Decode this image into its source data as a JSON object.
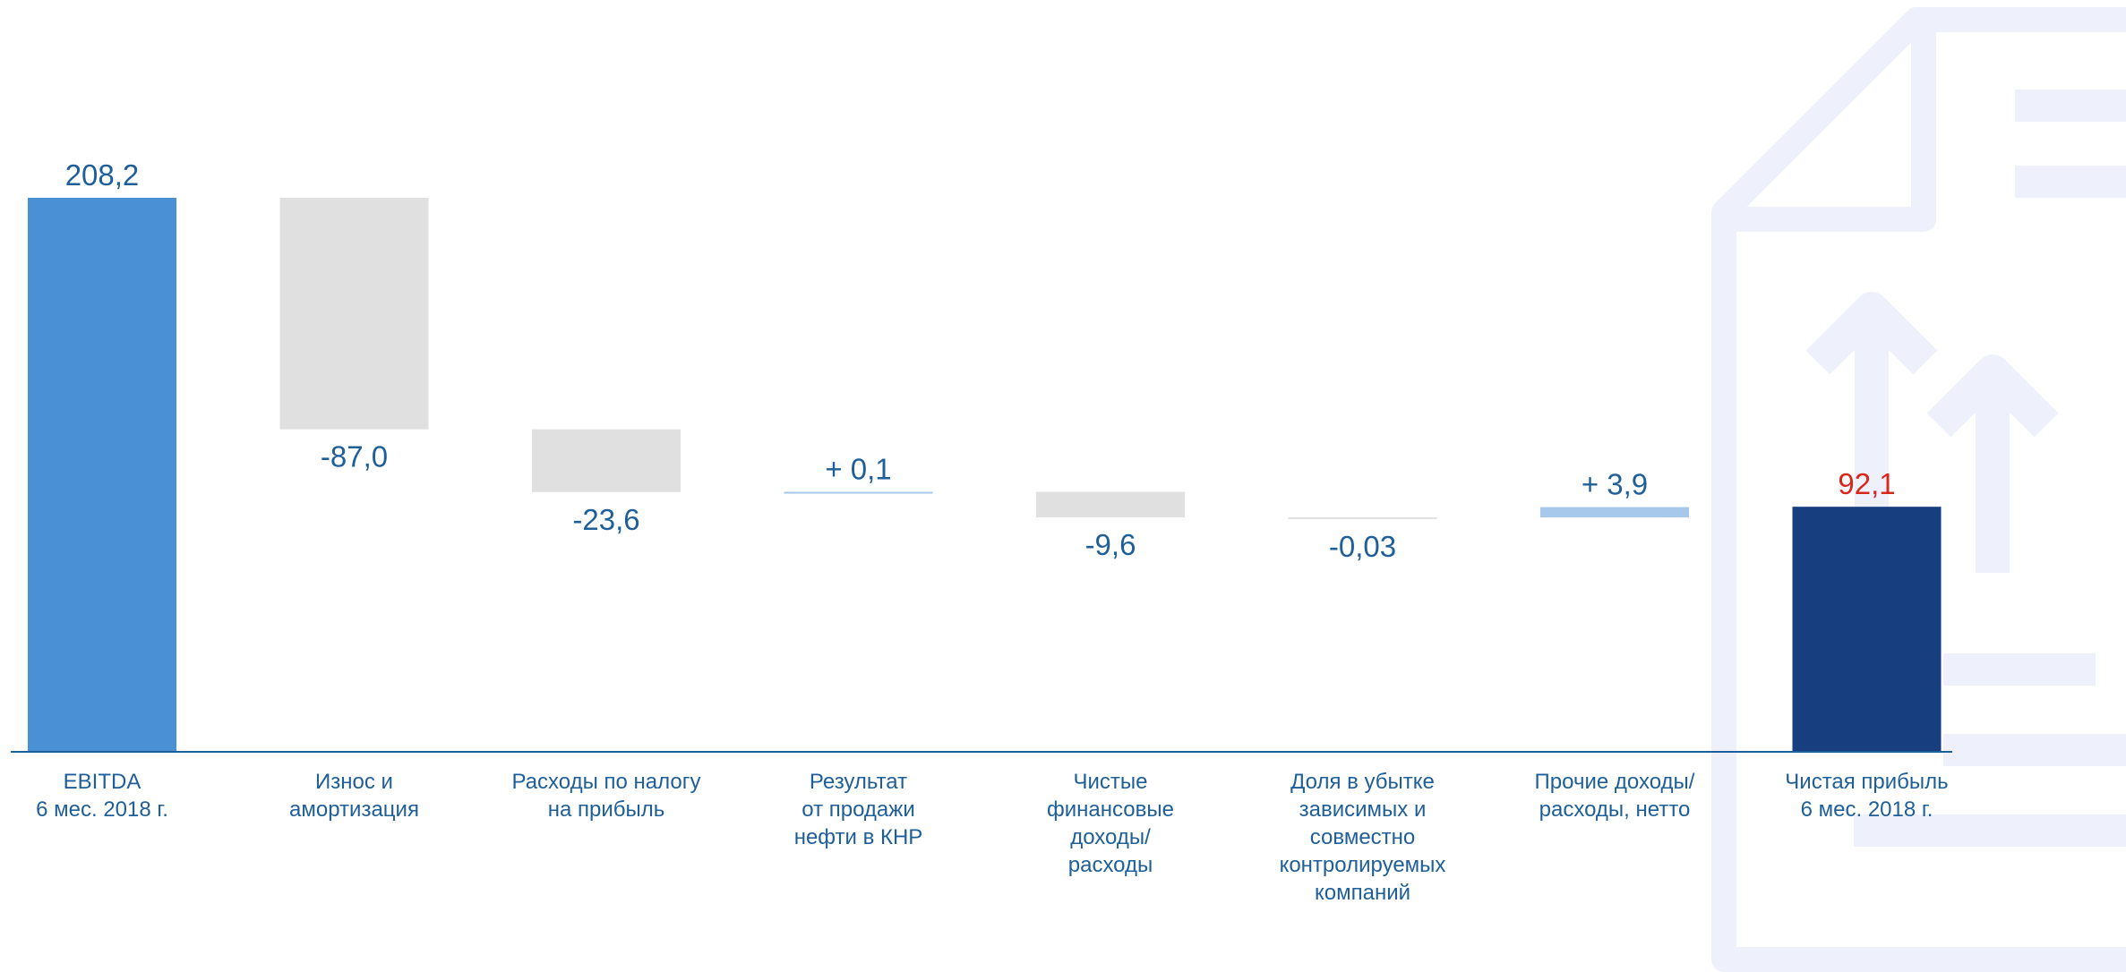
{
  "chart_data": {
    "type": "waterfall",
    "categories": [
      "EBITDA\n6 мес. 2018 г.",
      "Износ и\nамортизация",
      "Расходы по налогу\nна прибыль",
      "Результат\nот продажи\nнефти в КНР",
      "Чистые\nфинансовые\nдоходы/\nрасходы",
      "Доля в убытке\nзависимых и\nсовместно\nконтролируемых\nкомпаний",
      "Прочие доходы/\nрасходы, нетто",
      "Чистая прибыль\n6 мес. 2018 г."
    ],
    "values": [
      208.2,
      -87.0,
      -23.6,
      0.1,
      -9.6,
      -0.03,
      3.9,
      92.1
    ],
    "value_labels": [
      "208,2",
      "-87,0",
      "-23,6",
      "+ 0,1",
      "-9,6",
      "-0,03",
      "+ 3,9",
      "92,1"
    ],
    "colors": [
      "#4a90d4",
      "#e0e0e0",
      "#e0e0e0",
      "#a7c8ea",
      "#e0e0e0",
      "#e0e0e0",
      "#a7c8ea",
      "#173f80"
    ],
    "label_colors": [
      "#1f5f99",
      "#1f5f99",
      "#1f5f99",
      "#1f5f99",
      "#1f5f99",
      "#1f5f99",
      "#1f5f99",
      "#d9261c"
    ]
  }
}
